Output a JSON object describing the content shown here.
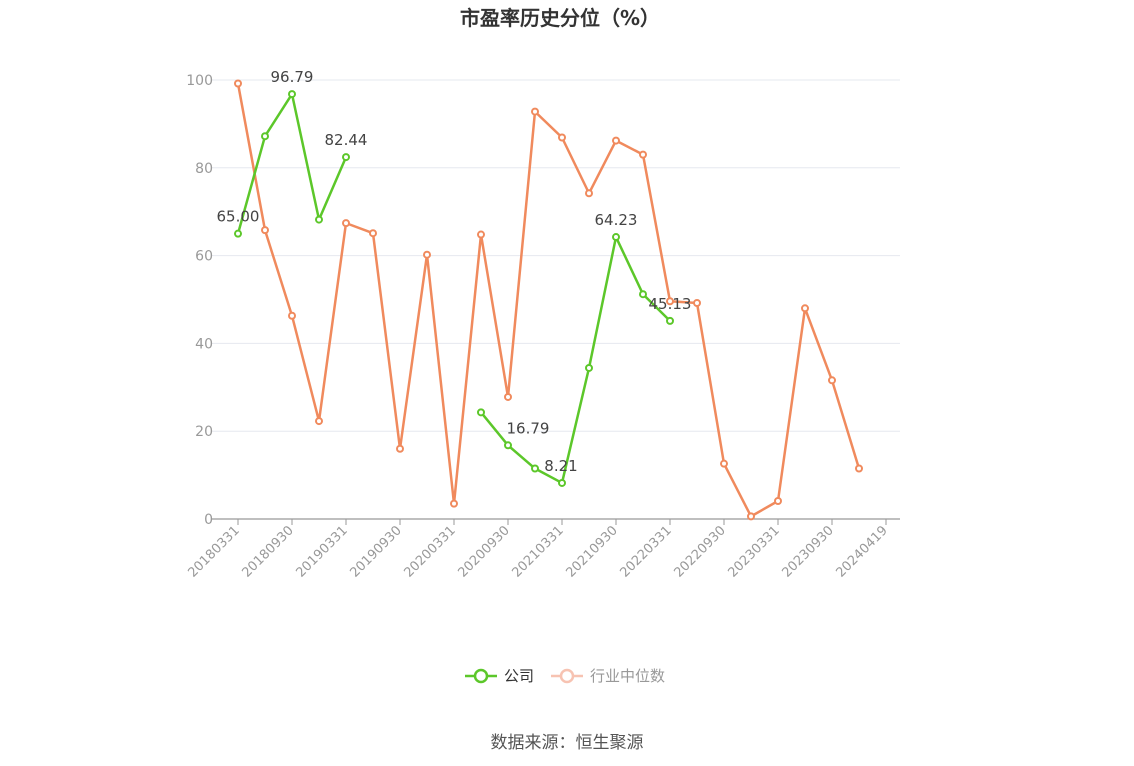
{
  "chart_data": {
    "type": "line",
    "title": "市盈率历史分位（%）",
    "ylim": [
      0,
      100
    ],
    "yticks": [
      "0",
      "20",
      "40",
      "60",
      "80",
      "100"
    ],
    "x_tick_labels": [
      "20180331",
      "20180930",
      "20190331",
      "20190930",
      "20200331",
      "20200930",
      "20210331",
      "20210930",
      "20220331",
      "20220930",
      "20230331",
      "20230930",
      "20240419"
    ],
    "grid": true,
    "legend_position": "bottom",
    "series": [
      {
        "name": "公司",
        "color": "#5cc72a",
        "values": [
          65.0,
          87.2,
          96.79,
          68.2,
          82.44,
          null,
          null,
          null,
          null,
          24.3,
          16.79,
          11.5,
          8.21,
          34.4,
          64.23,
          51.2,
          45.13,
          null,
          null,
          null,
          null,
          null,
          null,
          null
        ],
        "labels": {
          "0": "65.00",
          "2": "96.79",
          "4": "82.44",
          "10": "16.79",
          "12": "8.21",
          "14": "64.23",
          "16": "45.13"
        }
      },
      {
        "name": "行业中位数",
        "color": "#f08a5d",
        "values": [
          99.2,
          65.8,
          46.3,
          22.3,
          67.4,
          65.1,
          16.0,
          60.2,
          3.5,
          64.8,
          27.8,
          92.8,
          86.9,
          74.2,
          86.2,
          83.0,
          49.6,
          49.2,
          12.6,
          0.6,
          4.1,
          48.0,
          31.6,
          11.5
        ]
      }
    ]
  },
  "source": "数据来源：恒生聚源"
}
